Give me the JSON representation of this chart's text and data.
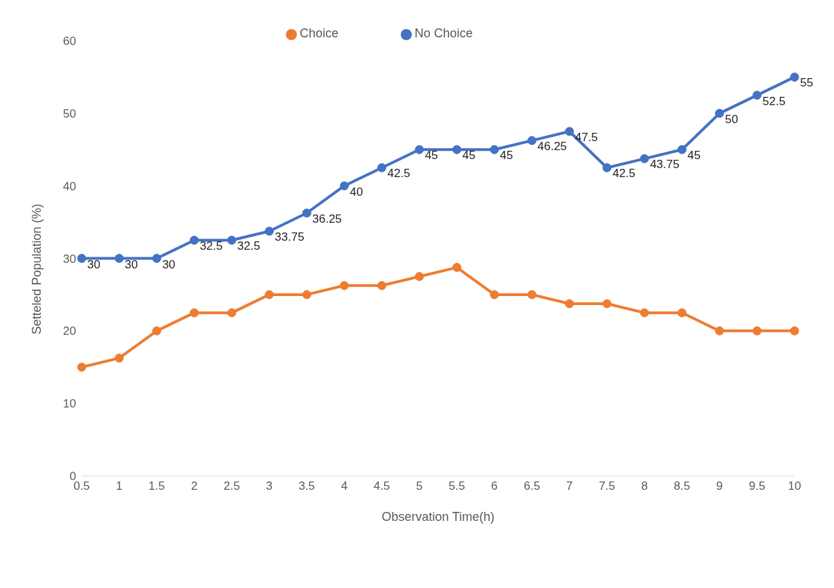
{
  "chart_data": {
    "type": "line",
    "xlabel": "Observation Time(h)",
    "ylabel": "Setteled Population (%)",
    "categories": [
      "0.5",
      "1",
      "1.5",
      "2",
      "2.5",
      "3",
      "3.5",
      "4",
      "4.5",
      "5",
      "5.5",
      "6",
      "6.5",
      "7",
      "7.5",
      "8",
      "8.5",
      "9",
      "9.5",
      "10"
    ],
    "series": [
      {
        "name": "No Choice",
        "color": "#4472c4",
        "values": [
          30,
          30,
          30,
          32.5,
          32.5,
          33.75,
          36.25,
          40,
          42.5,
          45,
          45,
          45,
          46.25,
          47.5,
          42.5,
          43.75,
          45,
          50,
          52.5,
          55
        ],
        "value_labels": [
          "30",
          "30",
          "30",
          "32.5",
          "32.5",
          "33.75",
          "36.25",
          "40",
          "42.5",
          "45",
          "45",
          "45",
          "46.25",
          "47.5",
          "42.5",
          "43.75",
          "45",
          "50",
          "52.5",
          "55"
        ]
      },
      {
        "name": "Choice",
        "color": "#ed7d31",
        "values": [
          15,
          16.25,
          20,
          22.5,
          22.5,
          25,
          25,
          26.25,
          26.25,
          27.5,
          28.75,
          25,
          25,
          23.75,
          23.75,
          22.5,
          22.5,
          20,
          20,
          20
        ]
      }
    ],
    "ylim": [
      0,
      60
    ],
    "yticks": [
      0,
      10,
      20,
      30,
      40,
      50,
      60
    ],
    "grid": false,
    "legend": "top",
    "marker": "circle",
    "line_style": "solid"
  }
}
